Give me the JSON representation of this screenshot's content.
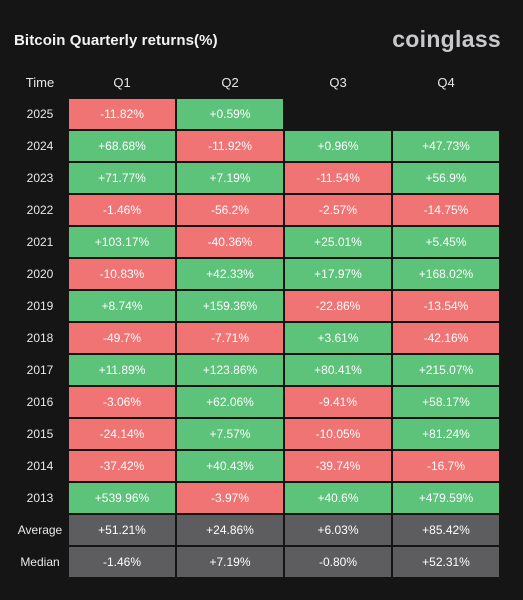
{
  "chart_data": {
    "type": "table",
    "title": "Bitcoin Quarterly returns(%)",
    "brand": "coinglass",
    "columns": [
      "Time",
      "Q1",
      "Q2",
      "Q3",
      "Q4"
    ],
    "rows": [
      {
        "label": "2025",
        "values": [
          "-11.82%",
          "+0.59%",
          "",
          ""
        ]
      },
      {
        "label": "2024",
        "values": [
          "+68.68%",
          "-11.92%",
          "+0.96%",
          "+47.73%"
        ]
      },
      {
        "label": "2023",
        "values": [
          "+71.77%",
          "+7.19%",
          "-11.54%",
          "+56.9%"
        ]
      },
      {
        "label": "2022",
        "values": [
          "-1.46%",
          "-56.2%",
          "-2.57%",
          "-14.75%"
        ]
      },
      {
        "label": "2021",
        "values": [
          "+103.17%",
          "-40.36%",
          "+25.01%",
          "+5.45%"
        ]
      },
      {
        "label": "2020",
        "values": [
          "-10.83%",
          "+42.33%",
          "+17.97%",
          "+168.02%"
        ]
      },
      {
        "label": "2019",
        "values": [
          "+8.74%",
          "+159.36%",
          "-22.86%",
          "-13.54%"
        ]
      },
      {
        "label": "2018",
        "values": [
          "-49.7%",
          "-7.71%",
          "+3.61%",
          "-42.16%"
        ]
      },
      {
        "label": "2017",
        "values": [
          "+11.89%",
          "+123.86%",
          "+80.41%",
          "+215.07%"
        ]
      },
      {
        "label": "2016",
        "values": [
          "-3.06%",
          "+62.06%",
          "-9.41%",
          "+58.17%"
        ]
      },
      {
        "label": "2015",
        "values": [
          "-24.14%",
          "+7.57%",
          "-10.05%",
          "+81.24%"
        ]
      },
      {
        "label": "2014",
        "values": [
          "-37.42%",
          "+40.43%",
          "-39.74%",
          "-16.7%"
        ]
      },
      {
        "label": "2013",
        "values": [
          "+539.96%",
          "-3.97%",
          "+40.6%",
          "+479.59%"
        ]
      }
    ],
    "summary_rows": [
      {
        "label": "Average",
        "values": [
          "+51.21%",
          "+24.86%",
          "+6.03%",
          "+85.42%"
        ]
      },
      {
        "label": "Median",
        "values": [
          "-1.46%",
          "+7.19%",
          "-0.80%",
          "+52.31%"
        ]
      }
    ],
    "colors": {
      "positive": "#5dc27a",
      "negative": "#f17475",
      "summary": "#5d5d60",
      "background": "#151516"
    }
  }
}
